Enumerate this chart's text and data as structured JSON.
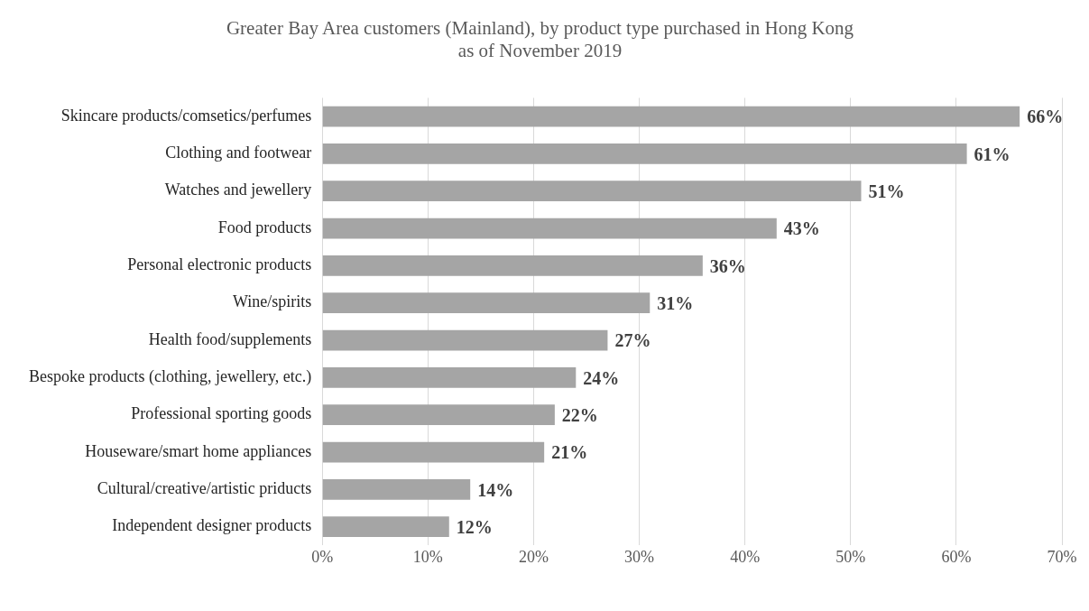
{
  "chart_data": {
    "type": "bar",
    "orientation": "horizontal",
    "title": "Greater Bay Area customers (Mainland), by product type purchased in Hong Kong",
    "subtitle": "as of November 2019",
    "categories": [
      "Skincare products/comsetics/perfumes",
      "Clothing and footwear",
      "Watches and jewellery",
      "Food products",
      "Personal electronic products",
      "Wine/spirits",
      "Health food/supplements",
      "Bespoke products (clothing, jewellery, etc.)",
      "Professional sporting goods",
      "Houseware/smart home appliances",
      "Cultural/creative/artistic priducts",
      "Independent designer products"
    ],
    "values": [
      66,
      61,
      51,
      43,
      36,
      31,
      27,
      24,
      22,
      21,
      14,
      12
    ],
    "value_labels": [
      "66%",
      "61%",
      "51%",
      "43%",
      "36%",
      "31%",
      "27%",
      "24%",
      "22%",
      "21%",
      "14%",
      "12%"
    ],
    "color": "#a5a5a5",
    "xlim": [
      0,
      70
    ],
    "xticks": [
      {
        "value": 0,
        "label": "0%"
      },
      {
        "value": 10,
        "label": "10%"
      },
      {
        "value": 20,
        "label": "20%"
      },
      {
        "value": 30,
        "label": "30%"
      },
      {
        "value": 40,
        "label": "40%"
      },
      {
        "value": 50,
        "label": "50%"
      },
      {
        "value": 60,
        "label": "60%"
      },
      {
        "value": 70,
        "label": "70%"
      }
    ],
    "grid": "x",
    "legend": false
  }
}
